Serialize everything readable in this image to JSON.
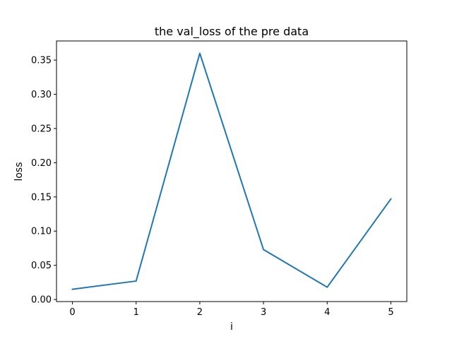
{
  "chart_data": {
    "type": "line",
    "title": "the val_loss of the pre data",
    "xlabel": "i",
    "ylabel": "loss",
    "xlim": [
      -0.25,
      5.25
    ],
    "ylim": [
      -0.003,
      0.378
    ],
    "xticks": [
      0,
      1,
      2,
      3,
      4,
      5
    ],
    "yticks": [
      0.0,
      0.05,
      0.1,
      0.15,
      0.2,
      0.25,
      0.3,
      0.35
    ],
    "ytick_labels": [
      "0.00",
      "0.05",
      "0.10",
      "0.15",
      "0.20",
      "0.25",
      "0.30",
      "0.35"
    ],
    "grid": false,
    "series": [
      {
        "color": "#1f77b4",
        "x": [
          0,
          1,
          2,
          3,
          4,
          5
        ],
        "y": [
          0.015,
          0.027,
          0.36,
          0.073,
          0.018,
          0.147
        ]
      }
    ]
  }
}
